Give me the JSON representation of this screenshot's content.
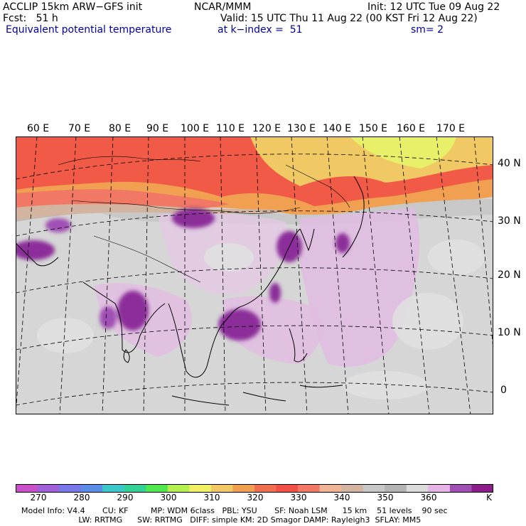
{
  "header": {
    "model_title": "ACCLIP 15km ARW−GFS init",
    "center": "NCAR/MMM",
    "init": "Init: 12 UTC Tue 09 Aug 22",
    "fcst": "Fcst:   51 h",
    "valid": "Valid: 15 UTC Thu 11 Aug 22 (00 KST Fri 12 Aug 22)",
    "field": "Equivalent potential temperature",
    "level": "at k−index =  51",
    "smoothing": "sm= 2"
  },
  "longitude_labels": [
    "60 E",
    "70 E",
    "80 E",
    "90 E",
    "100 E",
    "110 E",
    "120 E",
    "130 E",
    "140 E",
    "150 E",
    "160 E",
    "170 E"
  ],
  "latitude_labels": [
    "40 N",
    "30 N",
    "20 N",
    "10 N",
    "0"
  ],
  "colorbar": {
    "colors": [
      "#c850c8",
      "#a060d8",
      "#7878e8",
      "#5a8ce8",
      "#3cc8c8",
      "#32d296",
      "#50e650",
      "#b4f050",
      "#f0f064",
      "#f0c864",
      "#f0a050",
      "#f06e50",
      "#f05046",
      "#f07864",
      "#f0b496",
      "#d2b4a0",
      "#c8c8c8",
      "#b4b4b4",
      "#dcdcdc",
      "#e6b4e6",
      "#a050b4",
      "#8c1e8c"
    ],
    "labels": [
      "270",
      "280",
      "290",
      "300",
      "310",
      "320",
      "330",
      "340",
      "350",
      "360"
    ],
    "unit": "K"
  },
  "footer": {
    "line1": "Model Info: V4.4       CU: KF         MP: WDM 6class   PBL: YSU       SF: Noah LSM      15 km    51 levels    90 sec",
    "line2": "                       LW: RRTMG      SW: RRTMG   DIFF: simple KM: 2D Smagor DAMP: Rayleigh3  SFLAY: MM5"
  }
}
